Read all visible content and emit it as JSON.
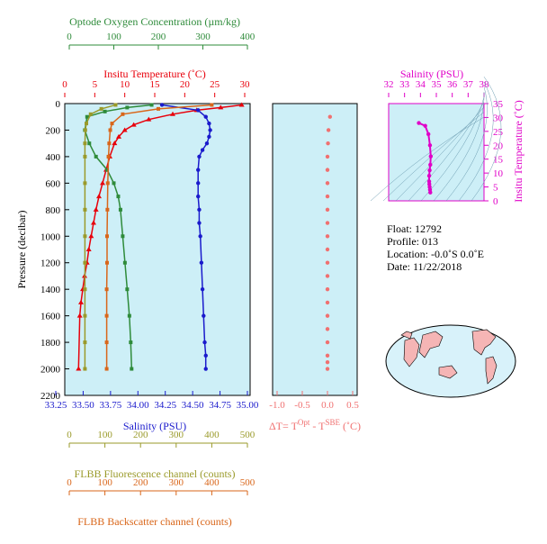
{
  "colors": {
    "oxygen": "#2e8b3a",
    "temperature": "#e8000b",
    "salinity": "#1a1acc",
    "fluorescence": "#9a9a2a",
    "backscatter": "#d9661a",
    "deltaT": "#f07070",
    "ts_diagram": "#e000c8",
    "panel_bg": "#cdeff7",
    "map_water": "#d8f2fa",
    "map_land": "#f5b5b5"
  },
  "main_panel": {
    "oxygen_axis": {
      "title": "Optode Oxygen Concentration (µm/kg)",
      "ticks": [
        "0",
        "100",
        "200",
        "300",
        "400"
      ]
    },
    "temperature_axis": {
      "title": "Insitu Temperature (˚C)",
      "ticks": [
        "0",
        "5",
        "10",
        "15",
        "20",
        "25",
        "30"
      ]
    },
    "salinity_axis": {
      "title": "Salinity (PSU)",
      "ticks": [
        "33.25",
        "33.50",
        "33.75",
        "34.00",
        "34.25",
        "34.50",
        "34.75",
        "35.00"
      ]
    },
    "pressure_axis": {
      "title": "Pressure (decibar)",
      "ticks": [
        "0",
        "200",
        "400",
        "600",
        "800",
        "1000",
        "1200",
        "1400",
        "1600",
        "1800",
        "2000",
        "2200"
      ]
    },
    "fluorescence_axis": {
      "title": "FLBB Fluorescence channel (counts)",
      "ticks": [
        "0",
        "100",
        "200",
        "300",
        "400",
        "500"
      ]
    },
    "backscatter_axis": {
      "title": "FLBB Backscatter channel (counts)",
      "ticks": [
        "0",
        "100",
        "200",
        "300",
        "400",
        "500"
      ]
    }
  },
  "delta_panel": {
    "axis_title_prefix": "ΔT= T",
    "axis_title_sup1": "Opt",
    "axis_title_mid": " - T",
    "axis_title_sup2": "SBE",
    "axis_title_suffix": " (˚C)",
    "ticks": [
      "-1.0",
      "-0.5",
      "0.0",
      "0.5"
    ]
  },
  "ts_panel": {
    "salinity_title": "Salinity (PSU)",
    "salinity_ticks": [
      "32",
      "33",
      "34",
      "35",
      "36",
      "37",
      "38"
    ],
    "temperature_title": "Insitu Temperature (˚C)",
    "temperature_ticks": [
      "0",
      "5",
      "10",
      "15",
      "20",
      "25",
      "30",
      "35"
    ]
  },
  "info": {
    "float": "Float:  12792",
    "profile": "Profile:  013",
    "location": "Location:  -0.0˚S   0.0˚E",
    "date": "Date:  11/22/2018"
  },
  "chart_data": [
    {
      "type": "line",
      "name": "Insitu Temperature",
      "x": [
        29.5,
        26,
        22,
        18,
        14,
        11.5,
        10,
        9,
        8.3,
        7.5,
        6.9,
        6.3,
        5.7,
        5.2,
        4.8,
        4.4,
        4.0,
        3.7,
        3.3,
        3.0,
        2.7,
        2.5,
        2.3
      ],
      "y": [
        10,
        30,
        50,
        80,
        120,
        160,
        200,
        250,
        300,
        400,
        500,
        600,
        700,
        800,
        900,
        1000,
        1100,
        1200,
        1300,
        1400,
        1500,
        1600,
        2000
      ],
      "xlim": [
        0,
        30
      ],
      "ylim": [
        2200,
        0
      ]
    },
    {
      "type": "line",
      "name": "Salinity",
      "x": [
        34.22,
        34.55,
        34.62,
        34.65,
        34.66,
        34.65,
        34.63,
        34.59,
        34.56,
        34.55,
        34.55,
        34.55,
        34.56,
        34.56,
        34.57,
        34.58,
        34.59,
        34.6,
        34.61,
        34.62,
        34.62
      ],
      "y": [
        10,
        50,
        100,
        150,
        200,
        250,
        300,
        350,
        400,
        500,
        600,
        700,
        800,
        900,
        1000,
        1200,
        1400,
        1600,
        1800,
        1900,
        2000
      ],
      "xlim": [
        33.25,
        35.0
      ],
      "ylim": [
        2200,
        0
      ]
    },
    {
      "type": "line",
      "name": "Optode Oxygen",
      "x": [
        185,
        130,
        80,
        40,
        35,
        45,
        60,
        85,
        100,
        110,
        115,
        120,
        125,
        130,
        135,
        138,
        140
      ],
      "y": [
        10,
        30,
        60,
        100,
        200,
        300,
        400,
        500,
        600,
        700,
        800,
        1000,
        1200,
        1400,
        1600,
        1800,
        2000
      ],
      "xlim": [
        0,
        400
      ],
      "ylim": [
        2200,
        0
      ]
    },
    {
      "type": "line",
      "name": "FLBB Fluorescence",
      "x": [
        130,
        90,
        60,
        48,
        45,
        44,
        44,
        44,
        44,
        44,
        44,
        44,
        44,
        44,
        44
      ],
      "y": [
        10,
        40,
        80,
        150,
        200,
        300,
        400,
        600,
        800,
        1000,
        1200,
        1400,
        1600,
        1800,
        2000
      ],
      "xlim": [
        0,
        500
      ],
      "ylim": [
        2200,
        0
      ]
    },
    {
      "type": "line",
      "name": "FLBB Backscatter",
      "x": [
        400,
        250,
        150,
        120,
        115,
        112,
        110,
        108,
        107,
        106,
        106,
        105,
        105,
        105,
        105
      ],
      "y": [
        10,
        40,
        80,
        150,
        200,
        300,
        400,
        600,
        800,
        1000,
        1200,
        1400,
        1600,
        1800,
        2000
      ],
      "xlim": [
        0,
        500
      ],
      "ylim": [
        2200,
        0
      ]
    },
    {
      "type": "scatter",
      "name": "Delta T",
      "x": [
        0.05,
        0.02,
        0.01,
        0.0,
        0.0,
        0.0,
        0.0,
        0.0,
        0.0,
        0.0,
        0.0,
        0.0,
        0.0,
        0.0,
        0.0,
        0.0,
        0.0,
        0.0,
        0.0,
        0.0,
        0.0
      ],
      "y": [
        100,
        200,
        300,
        400,
        500,
        600,
        700,
        800,
        900,
        1000,
        1100,
        1200,
        1300,
        1400,
        1500,
        1600,
        1700,
        1800,
        1900,
        1950,
        2000
      ],
      "xlim": [
        -1.0,
        0.5
      ],
      "ylim": [
        2200,
        0
      ]
    },
    {
      "type": "scatter",
      "name": "T-S",
      "x": [
        33.9,
        34.3,
        34.5,
        34.6,
        34.65,
        34.62,
        34.58,
        34.55,
        34.55,
        34.56,
        34.58,
        34.6,
        34.62
      ],
      "y": [
        28,
        27,
        24,
        20,
        16,
        13,
        11,
        9,
        7,
        6,
        5,
        4,
        3
      ],
      "xlim": [
        32,
        38
      ],
      "ylim": [
        0,
        35
      ]
    }
  ]
}
